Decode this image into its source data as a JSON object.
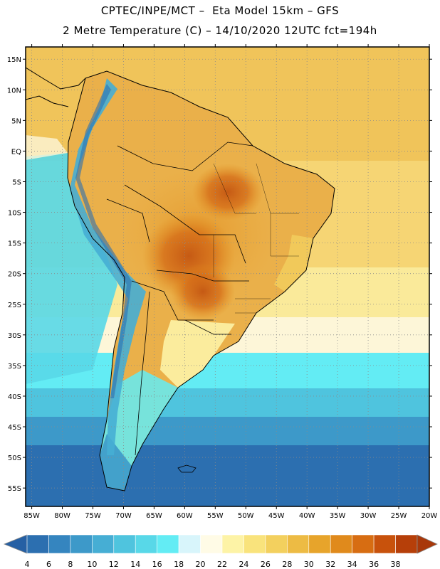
{
  "title": {
    "line1": "CPTEC/INPE/MCT –  Eta Model 15km – GFS",
    "line2": "2 Metre Temperature (C) – 14/10/2020 12UTC fct=194h"
  },
  "map": {
    "lat_range": [
      -58,
      17
    ],
    "lon_range": [
      -86,
      -20
    ],
    "lat_ticks": [
      {
        "value": 15,
        "label": "15N"
      },
      {
        "value": 10,
        "label": "10N"
      },
      {
        "value": 5,
        "label": "5N"
      },
      {
        "value": 0,
        "label": "EQ"
      },
      {
        "value": -5,
        "label": "5S"
      },
      {
        "value": -10,
        "label": "10S"
      },
      {
        "value": -15,
        "label": "15S"
      },
      {
        "value": -20,
        "label": "20S"
      },
      {
        "value": -25,
        "label": "25S"
      },
      {
        "value": -30,
        "label": "30S"
      },
      {
        "value": -35,
        "label": "35S"
      },
      {
        "value": -40,
        "label": "40S"
      },
      {
        "value": -45,
        "label": "45S"
      },
      {
        "value": -50,
        "label": "50S"
      },
      {
        "value": -55,
        "label": "55S"
      }
    ],
    "lon_ticks": [
      {
        "value": -85,
        "label": "85W"
      },
      {
        "value": -80,
        "label": "80W"
      },
      {
        "value": -75,
        "label": "75W"
      },
      {
        "value": -70,
        "label": "70W"
      },
      {
        "value": -65,
        "label": "65W"
      },
      {
        "value": -60,
        "label": "60W"
      },
      {
        "value": -55,
        "label": "55W"
      },
      {
        "value": -50,
        "label": "50W"
      },
      {
        "value": -45,
        "label": "45W"
      },
      {
        "value": -40,
        "label": "40W"
      },
      {
        "value": -35,
        "label": "35W"
      },
      {
        "value": -30,
        "label": "30W"
      },
      {
        "value": -25,
        "label": "25W"
      },
      {
        "value": -20,
        "label": "20W"
      }
    ]
  },
  "colorbar": {
    "values": [
      "4",
      "6",
      "8",
      "10",
      "12",
      "14",
      "16",
      "18",
      "20",
      "22",
      "24",
      "26",
      "28",
      "30",
      "32",
      "34",
      "36",
      "38"
    ],
    "colors": [
      "#2c6fb0",
      "#3585bf",
      "#3d99c9",
      "#46aed4",
      "#4fc4de",
      "#58d8e8",
      "#63ecf4",
      "#d8f5fb",
      "#fffbe6",
      "#fdf3a6",
      "#f9e37c",
      "#f3d05e",
      "#edbb44",
      "#e7a42b",
      "#e08a1c",
      "#d76d12",
      "#c8520c",
      "#b63f09"
    ],
    "under_color": "#2660a4",
    "over_color": "#a8380a"
  }
}
